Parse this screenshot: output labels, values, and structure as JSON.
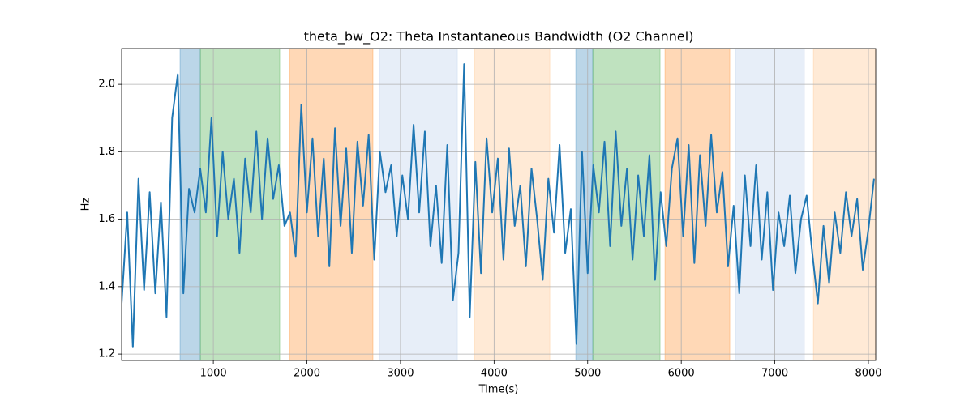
{
  "chart_data": {
    "type": "line",
    "title": "theta_bw_O2: Theta Instantaneous Bandwidth (O2 Channel)",
    "xlabel": "Time(s)",
    "ylabel": "Hz",
    "color": "#1f77b4",
    "x": [
      20,
      80,
      140,
      200,
      260,
      320,
      380,
      440,
      500,
      560,
      620,
      680,
      740,
      800,
      860,
      920,
      980,
      1040,
      1100,
      1160,
      1220,
      1280,
      1340,
      1400,
      1460,
      1520,
      1580,
      1640,
      1700,
      1760,
      1820,
      1880,
      1940,
      2000,
      2060,
      2120,
      2180,
      2240,
      2300,
      2360,
      2420,
      2480,
      2540,
      2600,
      2660,
      2720,
      2780,
      2840,
      2900,
      2960,
      3020,
      3080,
      3140,
      3200,
      3260,
      3320,
      3380,
      3440,
      3500,
      3560,
      3620,
      3680,
      3740,
      3800,
      3860,
      3920,
      3980,
      4040,
      4100,
      4160,
      4220,
      4280,
      4340,
      4400,
      4460,
      4520,
      4580,
      4640,
      4700,
      4760,
      4820,
      4880,
      4940,
      5000,
      5060,
      5120,
      5180,
      5240,
      5300,
      5360,
      5420,
      5480,
      5540,
      5600,
      5660,
      5720,
      5780,
      5840,
      5900,
      5960,
      6020,
      6080,
      6140,
      6200,
      6260,
      6320,
      6380,
      6440,
      6500,
      6560,
      6620,
      6680,
      6740,
      6800,
      6860,
      6920,
      6980,
      7040,
      7100,
      7160,
      7220,
      7280,
      7340,
      7400,
      7460,
      7520,
      7580,
      7640,
      7700,
      7760,
      7820,
      7880,
      7940,
      8000,
      8060
    ],
    "values": [
      1.35,
      1.62,
      1.22,
      1.72,
      1.39,
      1.68,
      1.38,
      1.65,
      1.31,
      1.9,
      2.03,
      1.38,
      1.69,
      1.62,
      1.75,
      1.62,
      1.9,
      1.55,
      1.8,
      1.6,
      1.72,
      1.5,
      1.78,
      1.62,
      1.86,
      1.6,
      1.84,
      1.66,
      1.76,
      1.58,
      1.62,
      1.49,
      1.94,
      1.62,
      1.84,
      1.55,
      1.78,
      1.46,
      1.87,
      1.58,
      1.81,
      1.5,
      1.83,
      1.64,
      1.85,
      1.48,
      1.8,
      1.68,
      1.76,
      1.55,
      1.73,
      1.6,
      1.88,
      1.62,
      1.86,
      1.52,
      1.7,
      1.47,
      1.82,
      1.36,
      1.5,
      2.06,
      1.31,
      1.77,
      1.44,
      1.84,
      1.62,
      1.78,
      1.48,
      1.81,
      1.58,
      1.7,
      1.46,
      1.75,
      1.6,
      1.42,
      1.72,
      1.56,
      1.82,
      1.5,
      1.63,
      1.23,
      1.8,
      1.44,
      1.76,
      1.62,
      1.83,
      1.52,
      1.86,
      1.58,
      1.75,
      1.48,
      1.73,
      1.55,
      1.79,
      1.42,
      1.68,
      1.52,
      1.75,
      1.84,
      1.55,
      1.82,
      1.47,
      1.79,
      1.58,
      1.85,
      1.62,
      1.74,
      1.46,
      1.64,
      1.38,
      1.73,
      1.52,
      1.76,
      1.48,
      1.68,
      1.39,
      1.62,
      1.52,
      1.67,
      1.44,
      1.6,
      1.67,
      1.5,
      1.35,
      1.58,
      1.41,
      1.62,
      1.5,
      1.68,
      1.55,
      1.66,
      1.45,
      1.57,
      1.72
    ],
    "spans": [
      {
        "start": 644,
        "end": 861,
        "color": "#1f77b4"
      },
      {
        "start": 861,
        "end": 1710,
        "color": "#2ca02c"
      },
      {
        "start": 1814,
        "end": 2706,
        "color": "#ff7f0e"
      },
      {
        "start": 2776,
        "end": 3608,
        "color": "#aec7e8"
      },
      {
        "start": 3790,
        "end": 4596,
        "color": "#ffbb78"
      },
      {
        "start": 4873,
        "end": 5055,
        "color": "#1f77b4"
      },
      {
        "start": 5055,
        "end": 5774,
        "color": "#2ca02c"
      },
      {
        "start": 5826,
        "end": 6519,
        "color": "#ff7f0e"
      },
      {
        "start": 6580,
        "end": 7316,
        "color": "#aec7e8"
      },
      {
        "start": 7412,
        "end": 8078,
        "color": "#ffbb78"
      }
    ],
    "span_opacity": 0.3,
    "xlim": [
      20,
      8078
    ],
    "ylim": [
      1.181,
      2.106
    ],
    "xticks": [
      1000,
      2000,
      3000,
      4000,
      5000,
      6000,
      7000,
      8000
    ],
    "yticks": [
      1.2,
      1.4,
      1.6,
      1.8,
      {
        "value": 2,
        "label": "2.0"
      }
    ],
    "grid": true
  }
}
